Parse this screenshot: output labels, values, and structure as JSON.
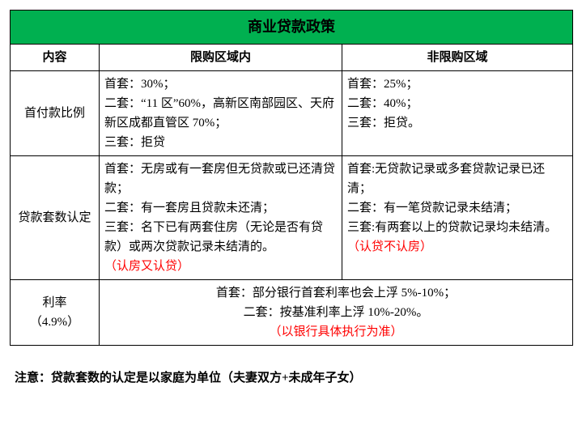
{
  "title": "商业贷款政策",
  "headers": {
    "content": "内容",
    "restricted": "限购区域内",
    "unrestricted": "非限购区域"
  },
  "rows": {
    "downpayment": {
      "label": "首付款比例",
      "restricted": "首套：30%；\n二套：“11 区”60%，高新区南部园区、天府新区成都直管区 70%；\n三套：拒贷",
      "unrestricted": "首套：25%；\n二套：40%；\n三套：拒贷。"
    },
    "loancount": {
      "label": "贷款套数认定",
      "restricted_main": "首套：无房或有一套房但无贷款或已还清贷款；\n二套：有一套房且贷款未还清；\n三套：名下已有两套住房（无论是否有贷款）或两次贷款记录未结清的。",
      "restricted_note": "（认房又认贷）",
      "unrestricted_main": "首套:无贷款记录或多套贷款记录已还清；\n二套：有一笔贷款记录未结清；\n三套:有两套以上的贷款记录均未结清。",
      "unrestricted_note": "（认贷不认房）"
    },
    "rate": {
      "label_line1": "利率",
      "label_line2": "（4.9%）",
      "main": "首套：部分银行首套利率也会上浮 5%-10%；\n二套：按基准利率上浮 10%-20%。",
      "note": "（以银行具体执行为准）"
    }
  },
  "footnote": "注意：贷款套数的认定是以家庭为单位（夫妻双方+未成年子女）"
}
